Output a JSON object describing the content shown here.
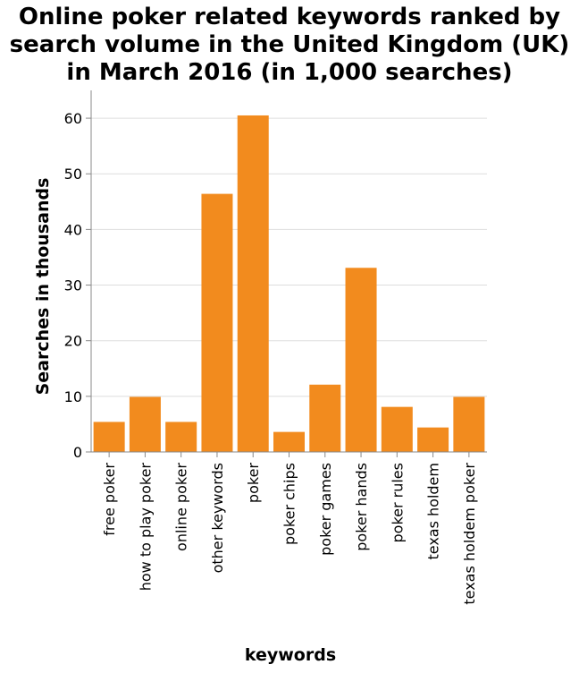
{
  "chart_data": {
    "type": "bar",
    "title_lines": [
      "Online poker related keywords ranked by",
      "search volume in the United Kingdom (UK)",
      "in March 2016 (in 1,000 searches)"
    ],
    "xlabel": "keywords",
    "ylabel": "Searches in thousands",
    "categories": [
      "free poker",
      "how to play poker",
      "online poker",
      "other keywords",
      "poker",
      "poker chips",
      "poker games",
      "poker hands",
      "poker rules",
      "texas holdem",
      "texas holdem poker"
    ],
    "values": [
      5.4,
      9.9,
      5.4,
      46.4,
      60.5,
      3.6,
      12.1,
      33.1,
      8.1,
      4.4,
      9.9
    ],
    "ylim": [
      0,
      65
    ],
    "yticks": [
      0,
      10,
      20,
      30,
      40,
      50,
      60
    ],
    "bar_color": "#f28b1e",
    "grid": true
  }
}
